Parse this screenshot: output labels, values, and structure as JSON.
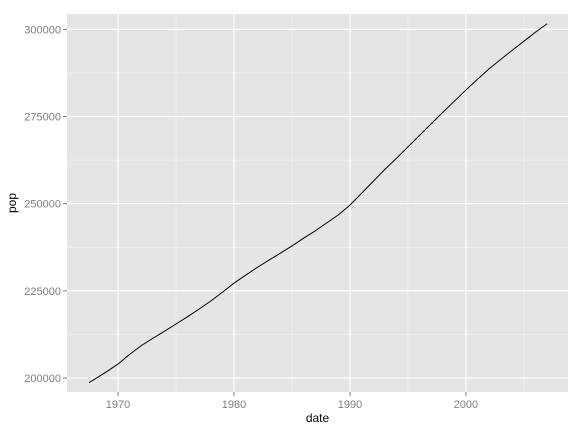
{
  "chart_data": {
    "type": "line",
    "title": "",
    "xlabel": "date",
    "ylabel": "pop",
    "xlim": [
      1965.6,
      2008.8
    ],
    "ylim": [
      196000,
      304400
    ],
    "x_ticks": [
      {
        "value": 1970,
        "label": "1970"
      },
      {
        "value": 1980,
        "label": "1980"
      },
      {
        "value": 1990,
        "label": "1990"
      },
      {
        "value": 2000,
        "label": "2000"
      }
    ],
    "y_ticks": [
      {
        "value": 200000,
        "label": "200000"
      },
      {
        "value": 225000,
        "label": "225000"
      },
      {
        "value": 250000,
        "label": "250000"
      },
      {
        "value": 275000,
        "label": "275000"
      },
      {
        "value": 300000,
        "label": "300000"
      }
    ],
    "grid": true,
    "colors": {
      "panel_background": "#e5e5e5",
      "grid_major": "#ffffff",
      "grid_minor": "#f2f2f2",
      "line": "#000000",
      "tick_label": "#7f7f7f",
      "axis_title": "#000000"
    },
    "series": [
      {
        "x": [
          1967.5,
          1968,
          1969,
          1970,
          1971,
          1972,
          1973,
          1974,
          1975,
          1976,
          1977,
          1978,
          1979,
          1980,
          1981,
          1982,
          1983,
          1984,
          1985,
          1986,
          1987,
          1988,
          1989,
          1990,
          1991,
          1992,
          1993,
          1994,
          1995,
          1996,
          1997,
          1998,
          1999,
          2000,
          2001,
          2002,
          2003,
          2004,
          2005,
          2006,
          2007
        ],
        "y": [
          198700,
          199700,
          201800,
          204000,
          206800,
          209300,
          211400,
          213400,
          215500,
          217600,
          219800,
          222100,
          224600,
          227200,
          229500,
          231700,
          233800,
          235800,
          237900,
          240100,
          242200,
          244500,
          246800,
          249600,
          253000,
          256400,
          259800,
          263000,
          266300,
          269600,
          272900,
          276200,
          279400,
          282600,
          285700,
          288700,
          291400,
          294000,
          296600,
          299200,
          301600
        ]
      }
    ]
  }
}
